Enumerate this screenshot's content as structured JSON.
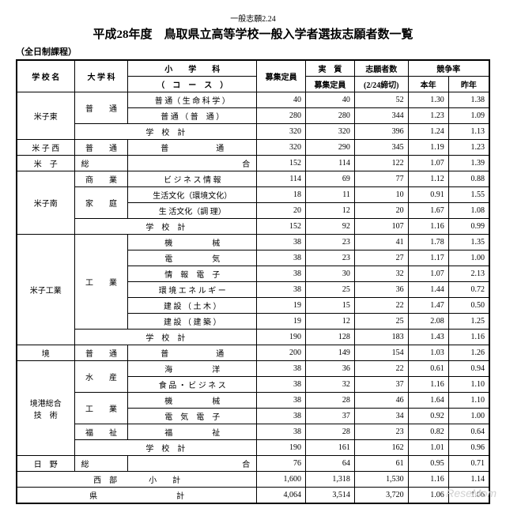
{
  "header_note": "一般志願2.24",
  "title": "平成28年度　鳥取県立高等学校一般入学者選抜志願者数一覧",
  "subtitle": "（全日制課程）",
  "h": {
    "school": "学 校 名",
    "dept": "大 学 科",
    "course_top": "小　　学　　科",
    "course_bot": "（　コ　ー　ス　）",
    "cap": "募集定員",
    "real": "実　質",
    "real2": "募集定員",
    "app": "志願者数",
    "app2": "(2/24締切)",
    "rate": "競争率",
    "thisyr": "本年",
    "lastyr": "昨年",
    "subtotal": "学　校　計",
    "west": "西　部　　　　小　　計",
    "pref": "県　　　　　　　　　　計"
  },
  "rows": [
    {
      "school": "米子東",
      "dept": "普　　通",
      "courses": [
        {
          "c": "普 通（ 生 命 科 学 ）",
          "cap": 40,
          "real": 40,
          "app": 52,
          "t": "1.30",
          "l": "1.38"
        },
        {
          "c": "普 通 （ 普　通 ）",
          "cap": 280,
          "real": 280,
          "app": 344,
          "t": "1.23",
          "l": "1.09"
        }
      ],
      "sub": {
        "cap": 320,
        "real": 320,
        "app": 396,
        "t": "1.24",
        "l": "1.13"
      }
    },
    {
      "school": "米 子 西",
      "dept": "普　　通",
      "courses": [
        {
          "c": "普　　　　　　通",
          "cap": 320,
          "real": 290,
          "app": 345,
          "t": "1.19",
          "l": "1.23"
        }
      ]
    },
    {
      "school": "米　子",
      "dept": "総",
      "merge": true,
      "c": "合",
      "cap": 152,
      "real": 114,
      "app": 122,
      "t": "1.07",
      "l": "1.39"
    },
    {
      "school": "米子南",
      "groups": [
        {
          "dept": "商　　業",
          "courses": [
            {
              "c": "ビ ジ ネ ス 情 報",
              "cap": 114,
              "real": 69,
              "app": 77,
              "t": "1.12",
              "l": "0.88"
            }
          ]
        },
        {
          "dept": "家　　庭",
          "courses": [
            {
              "c": "生活文化（環境文化）",
              "cap": 18,
              "real": 11,
              "app": 10,
              "t": "0.91",
              "l": "1.55"
            },
            {
              "c": "生 活文化（調 理）",
              "cap": 20,
              "real": 12,
              "app": 20,
              "t": "1.67",
              "l": "1.08"
            }
          ]
        }
      ],
      "sub": {
        "cap": 152,
        "real": 92,
        "app": 107,
        "t": "1.16",
        "l": "0.99"
      }
    },
    {
      "school": "米子工業",
      "dept": "工　　業",
      "courses": [
        {
          "c": "機　　　　　械",
          "cap": 38,
          "real": 23,
          "app": 41,
          "t": "1.78",
          "l": "1.35"
        },
        {
          "c": "電　　　　　気",
          "cap": 38,
          "real": 23,
          "app": 27,
          "t": "1.17",
          "l": "1.00"
        },
        {
          "c": "情　報　電　子",
          "cap": 38,
          "real": 30,
          "app": 32,
          "t": "1.07",
          "l": "2.13"
        },
        {
          "c": "環 境 エ ネ ル ギ ー",
          "cap": 38,
          "real": 25,
          "app": 36,
          "t": "1.44",
          "l": "0.72"
        },
        {
          "c": "建 設 （ 土 木 ）",
          "cap": 19,
          "real": 15,
          "app": 22,
          "t": "1.47",
          "l": "0.50"
        },
        {
          "c": "建 設 （ 建 築 ）",
          "cap": 19,
          "real": 12,
          "app": 25,
          "t": "2.08",
          "l": "1.25"
        }
      ],
      "sub": {
        "cap": 190,
        "real": 128,
        "app": 183,
        "t": "1.43",
        "l": "1.16"
      }
    },
    {
      "school": "境",
      "dept": "普　　通",
      "courses": [
        {
          "c": "普　　　　　　通",
          "cap": 200,
          "real": 149,
          "app": 154,
          "t": "1.03",
          "l": "1.26"
        }
      ]
    },
    {
      "school": "境港総合\n技　術",
      "groups": [
        {
          "dept": "水　　産",
          "courses": [
            {
              "c": "海　　　　　洋",
              "cap": 38,
              "real": 36,
              "app": 22,
              "t": "0.61",
              "l": "0.94"
            },
            {
              "c": "食 品 ・ ビ ジ ネ ス",
              "cap": 38,
              "real": 32,
              "app": 37,
              "t": "1.16",
              "l": "1.10"
            }
          ]
        },
        {
          "dept": "工　　業",
          "courses": [
            {
              "c": "機　　　　　械",
              "cap": 38,
              "real": 28,
              "app": 46,
              "t": "1.64",
              "l": "1.10"
            },
            {
              "c": "電　気　電　子",
              "cap": 38,
              "real": 37,
              "app": 34,
              "t": "0.92",
              "l": "1.00"
            }
          ]
        },
        {
          "dept": "福　　祉",
          "courses": [
            {
              "c": "福　　　　　祉",
              "cap": 38,
              "real": 28,
              "app": 23,
              "t": "0.82",
              "l": "0.64"
            }
          ]
        }
      ],
      "sub": {
        "cap": 190,
        "real": 161,
        "app": 162,
        "t": "1.01",
        "l": "0.96"
      }
    },
    {
      "school": "日　野",
      "dept": "総",
      "merge": true,
      "c": "合",
      "cap": 76,
      "real": 64,
      "app": 61,
      "t": "0.95",
      "l": "0.71"
    }
  ],
  "west": {
    "cap": "1,600",
    "real": "1,318",
    "app": "1,530",
    "t": "1.16",
    "l": "1.14"
  },
  "pref": {
    "cap": "4,064",
    "real": "3,514",
    "app": "3,720",
    "t": "1.06",
    "l": "1.06"
  },
  "watermark": "ReseMom"
}
